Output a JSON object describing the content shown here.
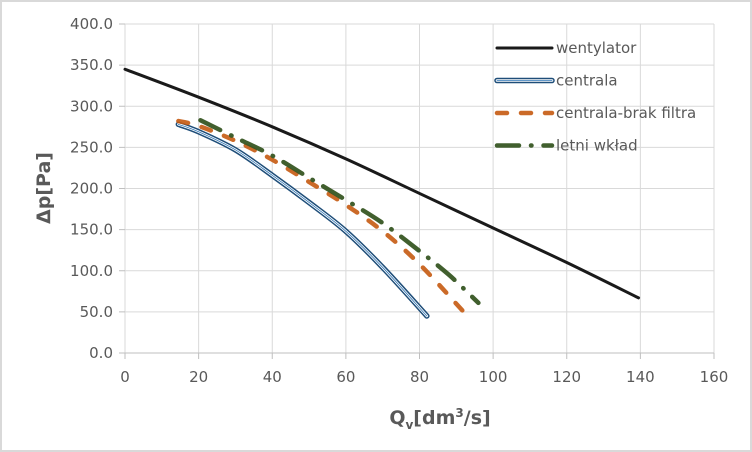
{
  "chart_data": {
    "type": "line",
    "title": "",
    "xlabel": "Qv[dm3/s]",
    "xlabel_main": "Q",
    "xlabel_sub": "v",
    "xlabel_rest": "[dm",
    "xlabel_sup": "3",
    "xlabel_end": "/s]",
    "ylabel": "Δp[Pa]",
    "xlim": [
      0,
      160
    ],
    "ylim": [
      0,
      400
    ],
    "x_ticks": [
      "0",
      "20",
      "40",
      "60",
      "80",
      "100",
      "120",
      "140",
      "160"
    ],
    "y_ticks": [
      "0.0",
      "50.0",
      "100.0",
      "150.0",
      "200.0",
      "250.0",
      "300.0",
      "350.0",
      "400.0"
    ],
    "grid": true,
    "legend_position": "top-right",
    "series": [
      {
        "name": "wentylator",
        "style": "solid",
        "color": "#1a1a1a",
        "x": [
          0,
          20,
          40,
          60,
          80,
          100,
          120,
          139.5
        ],
        "y": [
          345,
          311,
          275,
          236,
          194,
          152,
          110,
          67
        ]
      },
      {
        "name": "centrala",
        "style": "double",
        "color": "#1f4e79",
        "x": [
          14.5,
          20,
          30,
          40,
          50,
          60,
          70,
          82
        ],
        "y": [
          278,
          269,
          247,
          216,
          183,
          148,
          104,
          45
        ]
      },
      {
        "name": "centrala-brak filtra",
        "style": "dash",
        "color": "#c55a11",
        "x": [
          14.5,
          20,
          30,
          40,
          50,
          60,
          70,
          80,
          92
        ],
        "y": [
          282,
          276,
          258,
          235,
          208,
          180,
          148,
          108,
          50
        ]
      },
      {
        "name": "letni wkład",
        "style": "dash-dot",
        "color": "#375623",
        "x": [
          20.5,
          30,
          40,
          50,
          60,
          70,
          80,
          88,
          96
        ],
        "y": [
          283,
          262,
          240,
          213,
          186,
          158,
          124,
          95,
          61
        ]
      }
    ]
  }
}
